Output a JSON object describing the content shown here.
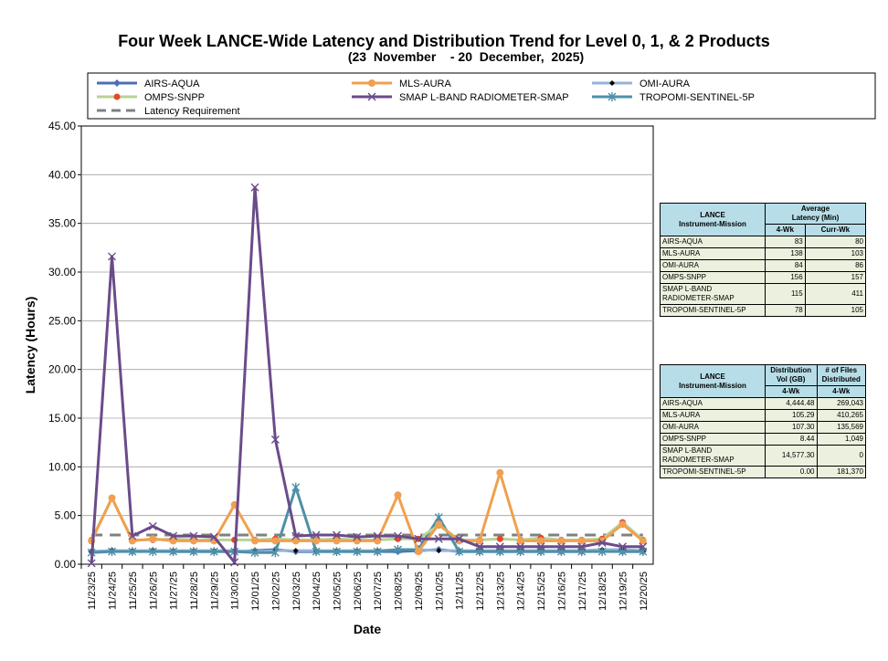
{
  "title": "Four Week LANCE-Wide Latency and Distribution Trend for Level 0, 1, & 2 Products",
  "subtitle": "(23  November    - 20  December,  2025)",
  "chart_data": {
    "type": "line",
    "xlabel": "Date",
    "ylabel": "Latency (Hours)",
    "ylim": [
      0,
      45
    ],
    "yticks": [
      "0.00",
      "5.00",
      "10.00",
      "15.00",
      "20.00",
      "25.00",
      "30.00",
      "35.00",
      "40.00",
      "45.00"
    ],
    "categories": [
      "11/23/25",
      "11/24/25",
      "11/25/25",
      "11/26/25",
      "11/27/25",
      "11/28/25",
      "11/29/25",
      "11/30/25",
      "12/01/25",
      "12/02/25",
      "12/03/25",
      "12/04/25",
      "12/05/25",
      "12/06/25",
      "12/07/25",
      "12/08/25",
      "12/09/25",
      "12/10/25",
      "12/11/25",
      "12/12/25",
      "12/13/25",
      "12/14/25",
      "12/15/25",
      "12/16/25",
      "12/17/25",
      "12/18/25",
      "12/19/25",
      "12/20/25"
    ],
    "grid": true,
    "legend": "top",
    "series": [
      {
        "name": "AIRS-AQUA",
        "color": "#4a6fb5",
        "marker": "diamond",
        "values": [
          1.3,
          1.4,
          1.3,
          1.4,
          1.3,
          1.3,
          1.3,
          1.3,
          1.4,
          1.5,
          1.3,
          1.3,
          1.3,
          1.3,
          1.3,
          1.3,
          1.4,
          1.5,
          1.3,
          1.3,
          1.3,
          1.3,
          1.3,
          1.3,
          1.3,
          1.4,
          1.3,
          1.3
        ]
      },
      {
        "name": "MLS-AURA",
        "color": "#f0a050",
        "marker": "circle",
        "values": [
          2.4,
          6.8,
          2.4,
          2.6,
          2.4,
          2.4,
          2.4,
          6.1,
          2.4,
          2.4,
          2.4,
          2.4,
          2.4,
          2.4,
          2.4,
          7.1,
          1.3,
          4.1,
          2.4,
          2.4,
          9.4,
          2.4,
          2.4,
          2.4,
          2.4,
          2.4,
          4.1,
          2.4
        ]
      },
      {
        "name": "OMI-AURA",
        "color": "#95b3d7",
        "marker": "diamond-black",
        "values": [
          1.3,
          1.4,
          1.4,
          1.4,
          1.4,
          1.4,
          1.4,
          1.4,
          1.3,
          1.4,
          1.4,
          1.4,
          1.4,
          1.4,
          1.4,
          1.5,
          1.5,
          1.4,
          1.4,
          1.4,
          1.4,
          1.4,
          1.4,
          1.4,
          1.4,
          1.5,
          1.5,
          1.4
        ]
      },
      {
        "name": "OMPS-SNPP",
        "color": "#b8d396",
        "marker": "circle-red",
        "values": [
          2.5,
          6.8,
          2.5,
          2.5,
          2.6,
          2.5,
          2.5,
          2.5,
          2.5,
          2.6,
          2.5,
          2.5,
          2.6,
          2.5,
          2.5,
          2.6,
          2.6,
          4.0,
          2.5,
          2.5,
          2.6,
          2.5,
          2.7,
          2.5,
          2.5,
          2.6,
          4.3,
          2.5
        ]
      },
      {
        "name": "SMAP L-BAND RADIOMETER-SMAP",
        "color": "#6b4b8a",
        "marker": "x",
        "values": [
          0.1,
          31.6,
          2.9,
          3.9,
          2.9,
          2.9,
          2.8,
          0.2,
          38.7,
          12.8,
          2.9,
          3.0,
          3.0,
          2.8,
          2.9,
          2.9,
          2.6,
          2.6,
          2.6,
          1.8,
          1.8,
          1.8,
          1.8,
          1.8,
          1.8,
          2.2,
          1.8,
          1.8
        ]
      },
      {
        "name": "TROPOMI-SENTINEL-5P",
        "color": "#4e90a8",
        "marker": "star",
        "values": [
          1.2,
          1.3,
          1.3,
          1.3,
          1.3,
          1.3,
          1.3,
          1.3,
          1.2,
          1.2,
          7.9,
          1.3,
          1.3,
          1.3,
          1.3,
          1.5,
          1.5,
          4.8,
          1.3,
          1.3,
          1.3,
          1.3,
          1.3,
          1.3,
          1.3,
          1.3,
          1.3,
          1.3
        ]
      },
      {
        "name": "Latency Requirement",
        "color": "#808080",
        "marker": "dash",
        "values": [
          3,
          3,
          3,
          3,
          3,
          3,
          3,
          3,
          3,
          3,
          3,
          3,
          3,
          3,
          3,
          3,
          3,
          3,
          3,
          3,
          3,
          3,
          3,
          3,
          3,
          3,
          3,
          3
        ]
      }
    ]
  },
  "latency_table": {
    "header_mission": [
      "LANCE",
      "Instrument-Mission"
    ],
    "header_avg": [
      "Average",
      "Latency (Min)"
    ],
    "sub_4wk": "4-Wk",
    "sub_curr": "Curr-Wk",
    "rows": [
      {
        "name": "AIRS-AQUA",
        "wk4": "83",
        "curr": "80"
      },
      {
        "name": "MLS-AURA",
        "wk4": "138",
        "curr": "103"
      },
      {
        "name": "OMI-AURA",
        "wk4": "84",
        "curr": "86"
      },
      {
        "name": "OMPS-SNPP",
        "wk4": "156",
        "curr": "157"
      },
      {
        "name": "SMAP L-BAND RADIOMETER-SMAP",
        "wk4": "115",
        "curr": "411"
      },
      {
        "name": "TROPOMI-SENTINEL-5P",
        "wk4": "78",
        "curr": "105"
      }
    ]
  },
  "distribution_table": {
    "header_mission": [
      "LANCE",
      "Instrument-Mission"
    ],
    "header_vol": [
      "Distribution",
      "Vol (GB)"
    ],
    "header_files": [
      "# of Files",
      "Distributed"
    ],
    "sub_4wk": "4-Wk",
    "rows": [
      {
        "name": "AIRS-AQUA",
        "vol": "4,444.48",
        "files": "269,043"
      },
      {
        "name": "MLS-AURA",
        "vol": "105.29",
        "files": "410,265"
      },
      {
        "name": "OMI-AURA",
        "vol": "107.30",
        "files": "135,569"
      },
      {
        "name": "OMPS-SNPP",
        "vol": "8.44",
        "files": "1,049"
      },
      {
        "name": "SMAP L-BAND RADIOMETER-SMAP",
        "vol": "14,577.30",
        "files": "0"
      },
      {
        "name": "TROPOMI-SENTINEL-5P",
        "vol": "0.00",
        "files": "181,370"
      }
    ]
  }
}
